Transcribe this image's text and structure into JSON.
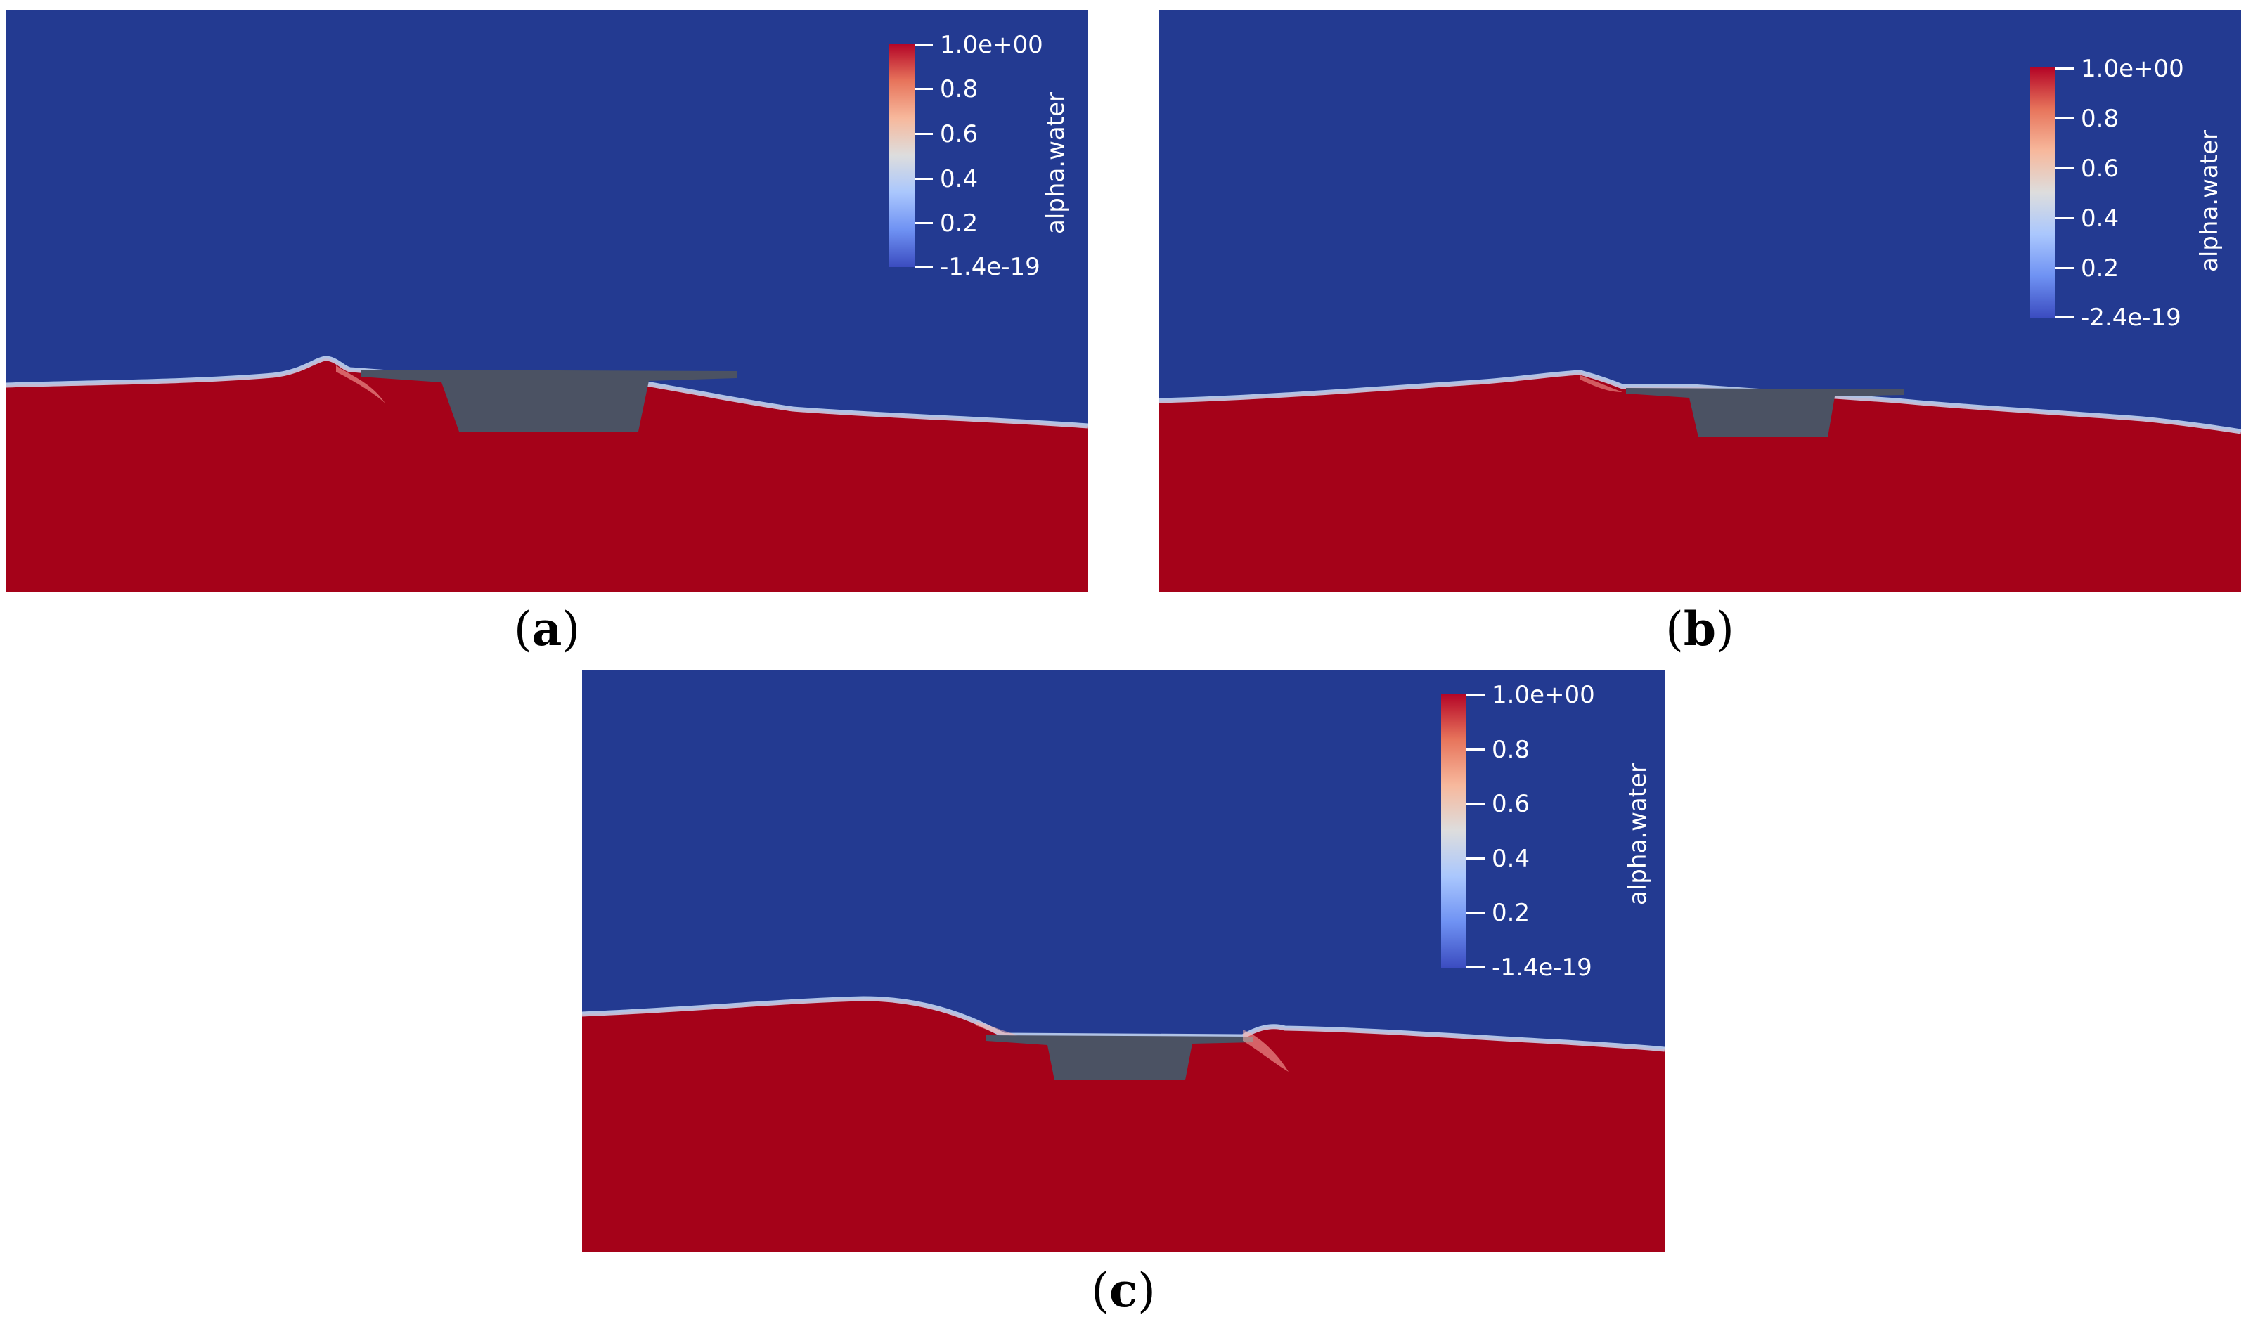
{
  "colors": {
    "air": "#233a91",
    "water": "#a50219",
    "structure": "#4b5263",
    "colormap": [
      "#3b4cc0",
      "#6f92f3",
      "#aac7fd",
      "#dddddd",
      "#f7b89c",
      "#e7745b",
      "#b40426"
    ]
  },
  "panels": [
    {
      "caption": "(a)",
      "colorbar": {
        "title": "alpha.water",
        "max_label": "1.0e+00",
        "labels": [
          "0.8",
          "0.6",
          "0.4",
          "0.2"
        ],
        "min_label": "-1.4e-19"
      }
    },
    {
      "caption": "(b)",
      "colorbar": {
        "title": "alpha.water",
        "max_label": "1.0e+00",
        "labels": [
          "0.8",
          "0.6",
          "0.4",
          "0.2"
        ],
        "min_label": "-2.4e-19"
      }
    },
    {
      "caption": "(c)",
      "colorbar": {
        "title": "alpha.water",
        "max_label": "1.0e+00",
        "labels": [
          "0.8",
          "0.6",
          "0.4",
          "0.2"
        ],
        "min_label": "-1.4e-19"
      }
    }
  ]
}
